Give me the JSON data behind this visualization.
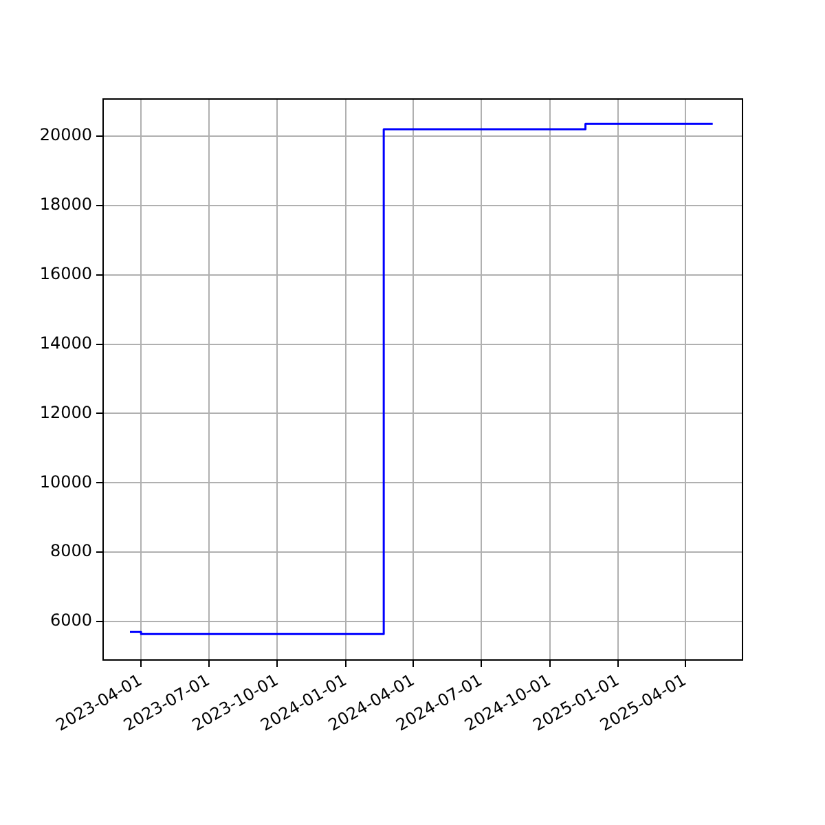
{
  "chart_data": {
    "type": "step",
    "x": [
      "2023-03-17",
      "2023-04-01",
      "2024-02-21",
      "2024-11-18",
      "2025-05-08"
    ],
    "series": [
      {
        "color": "#0000ff",
        "values": [
          5700,
          5640,
          20200,
          20350,
          20350
        ]
      }
    ],
    "xlim": [
      "2023-02-09",
      "2025-06-17"
    ],
    "xticks": [
      "2023-04-01",
      "2023-07-01",
      "2023-10-01",
      "2024-01-01",
      "2024-04-01",
      "2024-07-01",
      "2024-10-01",
      "2025-01-01",
      "2025-04-01"
    ],
    "ylim": [
      4890,
      21070
    ],
    "yticks": [
      6000,
      8000,
      10000,
      12000,
      14000,
      16000,
      18000,
      20000
    ],
    "grid": true
  }
}
